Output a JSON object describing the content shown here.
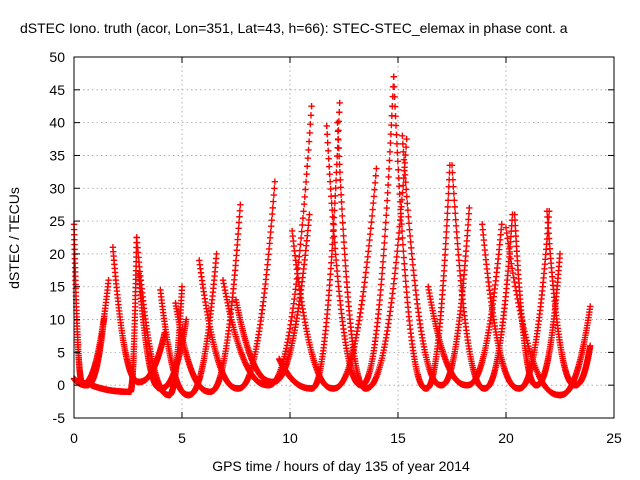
{
  "chart_data": {
    "type": "scatter",
    "title": "dSTEC Iono. truth (acor, Lon=351, Lat=43, h=66): STEC-STEC_elemax in phase cont. a",
    "xlabel": "GPS time / hours of day 135 of year 2014",
    "ylabel": "dSTEC  / TECUs",
    "xlim": [
      0,
      25
    ],
    "ylim": [
      -5,
      50
    ],
    "xticks": [
      0,
      5,
      10,
      15,
      20,
      25
    ],
    "yticks": [
      -5,
      0,
      5,
      10,
      15,
      20,
      25,
      30,
      35,
      40,
      45,
      50
    ],
    "grid": true,
    "marker": "plus",
    "color": "#ff0000",
    "arcs": [
      {
        "x_start": 0.0,
        "x_min": 0.4,
        "x_end": 1.6,
        "y_start": 24.5,
        "y_min": 0.2,
        "y_end": 16.0
      },
      {
        "x_start": 0.0,
        "x_min": 0.6,
        "x_end": 1.4,
        "y_start": 1.0,
        "y_min": 0.0,
        "y_end": 10.5
      },
      {
        "x_start": 1.8,
        "x_min": 3.0,
        "x_end": 4.2,
        "y_start": 21.0,
        "y_min": 0.5,
        "y_end": 8.0
      },
      {
        "x_start": 0.8,
        "x_min": 2.6,
        "x_end": 2.9,
        "y_start": 0.0,
        "y_min": -1.0,
        "y_end": 22.5
      },
      {
        "x_start": 2.9,
        "x_min": 4.4,
        "x_end": 5.0,
        "y_start": 22.5,
        "y_min": -1.5,
        "y_end": 15.0
      },
      {
        "x_start": 3.0,
        "x_min": 4.0,
        "x_end": 5.2,
        "y_start": 17.0,
        "y_min": -0.5,
        "y_end": 10.0
      },
      {
        "x_start": 4.0,
        "x_min": 5.3,
        "x_end": 6.6,
        "y_start": 14.5,
        "y_min": -1.5,
        "y_end": 20.0
      },
      {
        "x_start": 4.7,
        "x_min": 6.3,
        "x_end": 7.7,
        "y_start": 12.5,
        "y_min": -1.0,
        "y_end": 27.5
      },
      {
        "x_start": 5.8,
        "x_min": 7.6,
        "x_end": 9.3,
        "y_start": 19.0,
        "y_min": -0.5,
        "y_end": 31.0
      },
      {
        "x_start": 6.9,
        "x_min": 9.0,
        "x_end": 11.0,
        "y_start": 16.0,
        "y_min": 0.0,
        "y_end": 42.5
      },
      {
        "x_start": 7.5,
        "x_min": 9.2,
        "x_end": 10.9,
        "y_start": 13.0,
        "y_min": 0.5,
        "y_end": 26.0
      },
      {
        "x_start": 9.5,
        "x_min": 11.0,
        "x_end": 12.3,
        "y_start": 4.0,
        "y_min": -0.5,
        "y_end": 43.0
      },
      {
        "x_start": 10.1,
        "x_min": 12.0,
        "x_end": 14.0,
        "y_start": 23.5,
        "y_min": -0.5,
        "y_end": 33.0
      },
      {
        "x_start": 11.7,
        "x_min": 13.3,
        "x_end": 14.8,
        "y_start": 39.5,
        "y_min": 0.0,
        "y_end": 47.0
      },
      {
        "x_start": 12.2,
        "x_min": 13.5,
        "x_end": 15.4,
        "y_start": 40.0,
        "y_min": -0.5,
        "y_end": 37.5
      },
      {
        "x_start": 14.8,
        "x_min": 16.3,
        "x_end": 17.4,
        "y_start": 47.0,
        "y_min": -0.5,
        "y_end": 33.5
      },
      {
        "x_start": 15.2,
        "x_min": 17.0,
        "x_end": 18.3,
        "y_start": 38.0,
        "y_min": 0.0,
        "y_end": 27.0
      },
      {
        "x_start": 16.4,
        "x_min": 18.2,
        "x_end": 19.8,
        "y_start": 15.0,
        "y_min": 0.0,
        "y_end": 24.5
      },
      {
        "x_start": 17.5,
        "x_min": 19.0,
        "x_end": 20.3,
        "y_start": 33.5,
        "y_min": -0.5,
        "y_end": 26.0
      },
      {
        "x_start": 18.9,
        "x_min": 20.6,
        "x_end": 22.0,
        "y_start": 24.5,
        "y_min": -0.5,
        "y_end": 26.5
      },
      {
        "x_start": 20.4,
        "x_min": 21.4,
        "x_end": 22.5,
        "y_start": 26.0,
        "y_min": 0.0,
        "y_end": 20.0
      },
      {
        "x_start": 20.0,
        "x_min": 22.5,
        "x_end": 23.9,
        "y_start": 24.0,
        "y_min": -1.5,
        "y_end": 12.0
      },
      {
        "x_start": 21.9,
        "x_min": 23.2,
        "x_end": 23.9,
        "y_start": 26.5,
        "y_min": 0.0,
        "y_end": 6.0
      }
    ]
  }
}
